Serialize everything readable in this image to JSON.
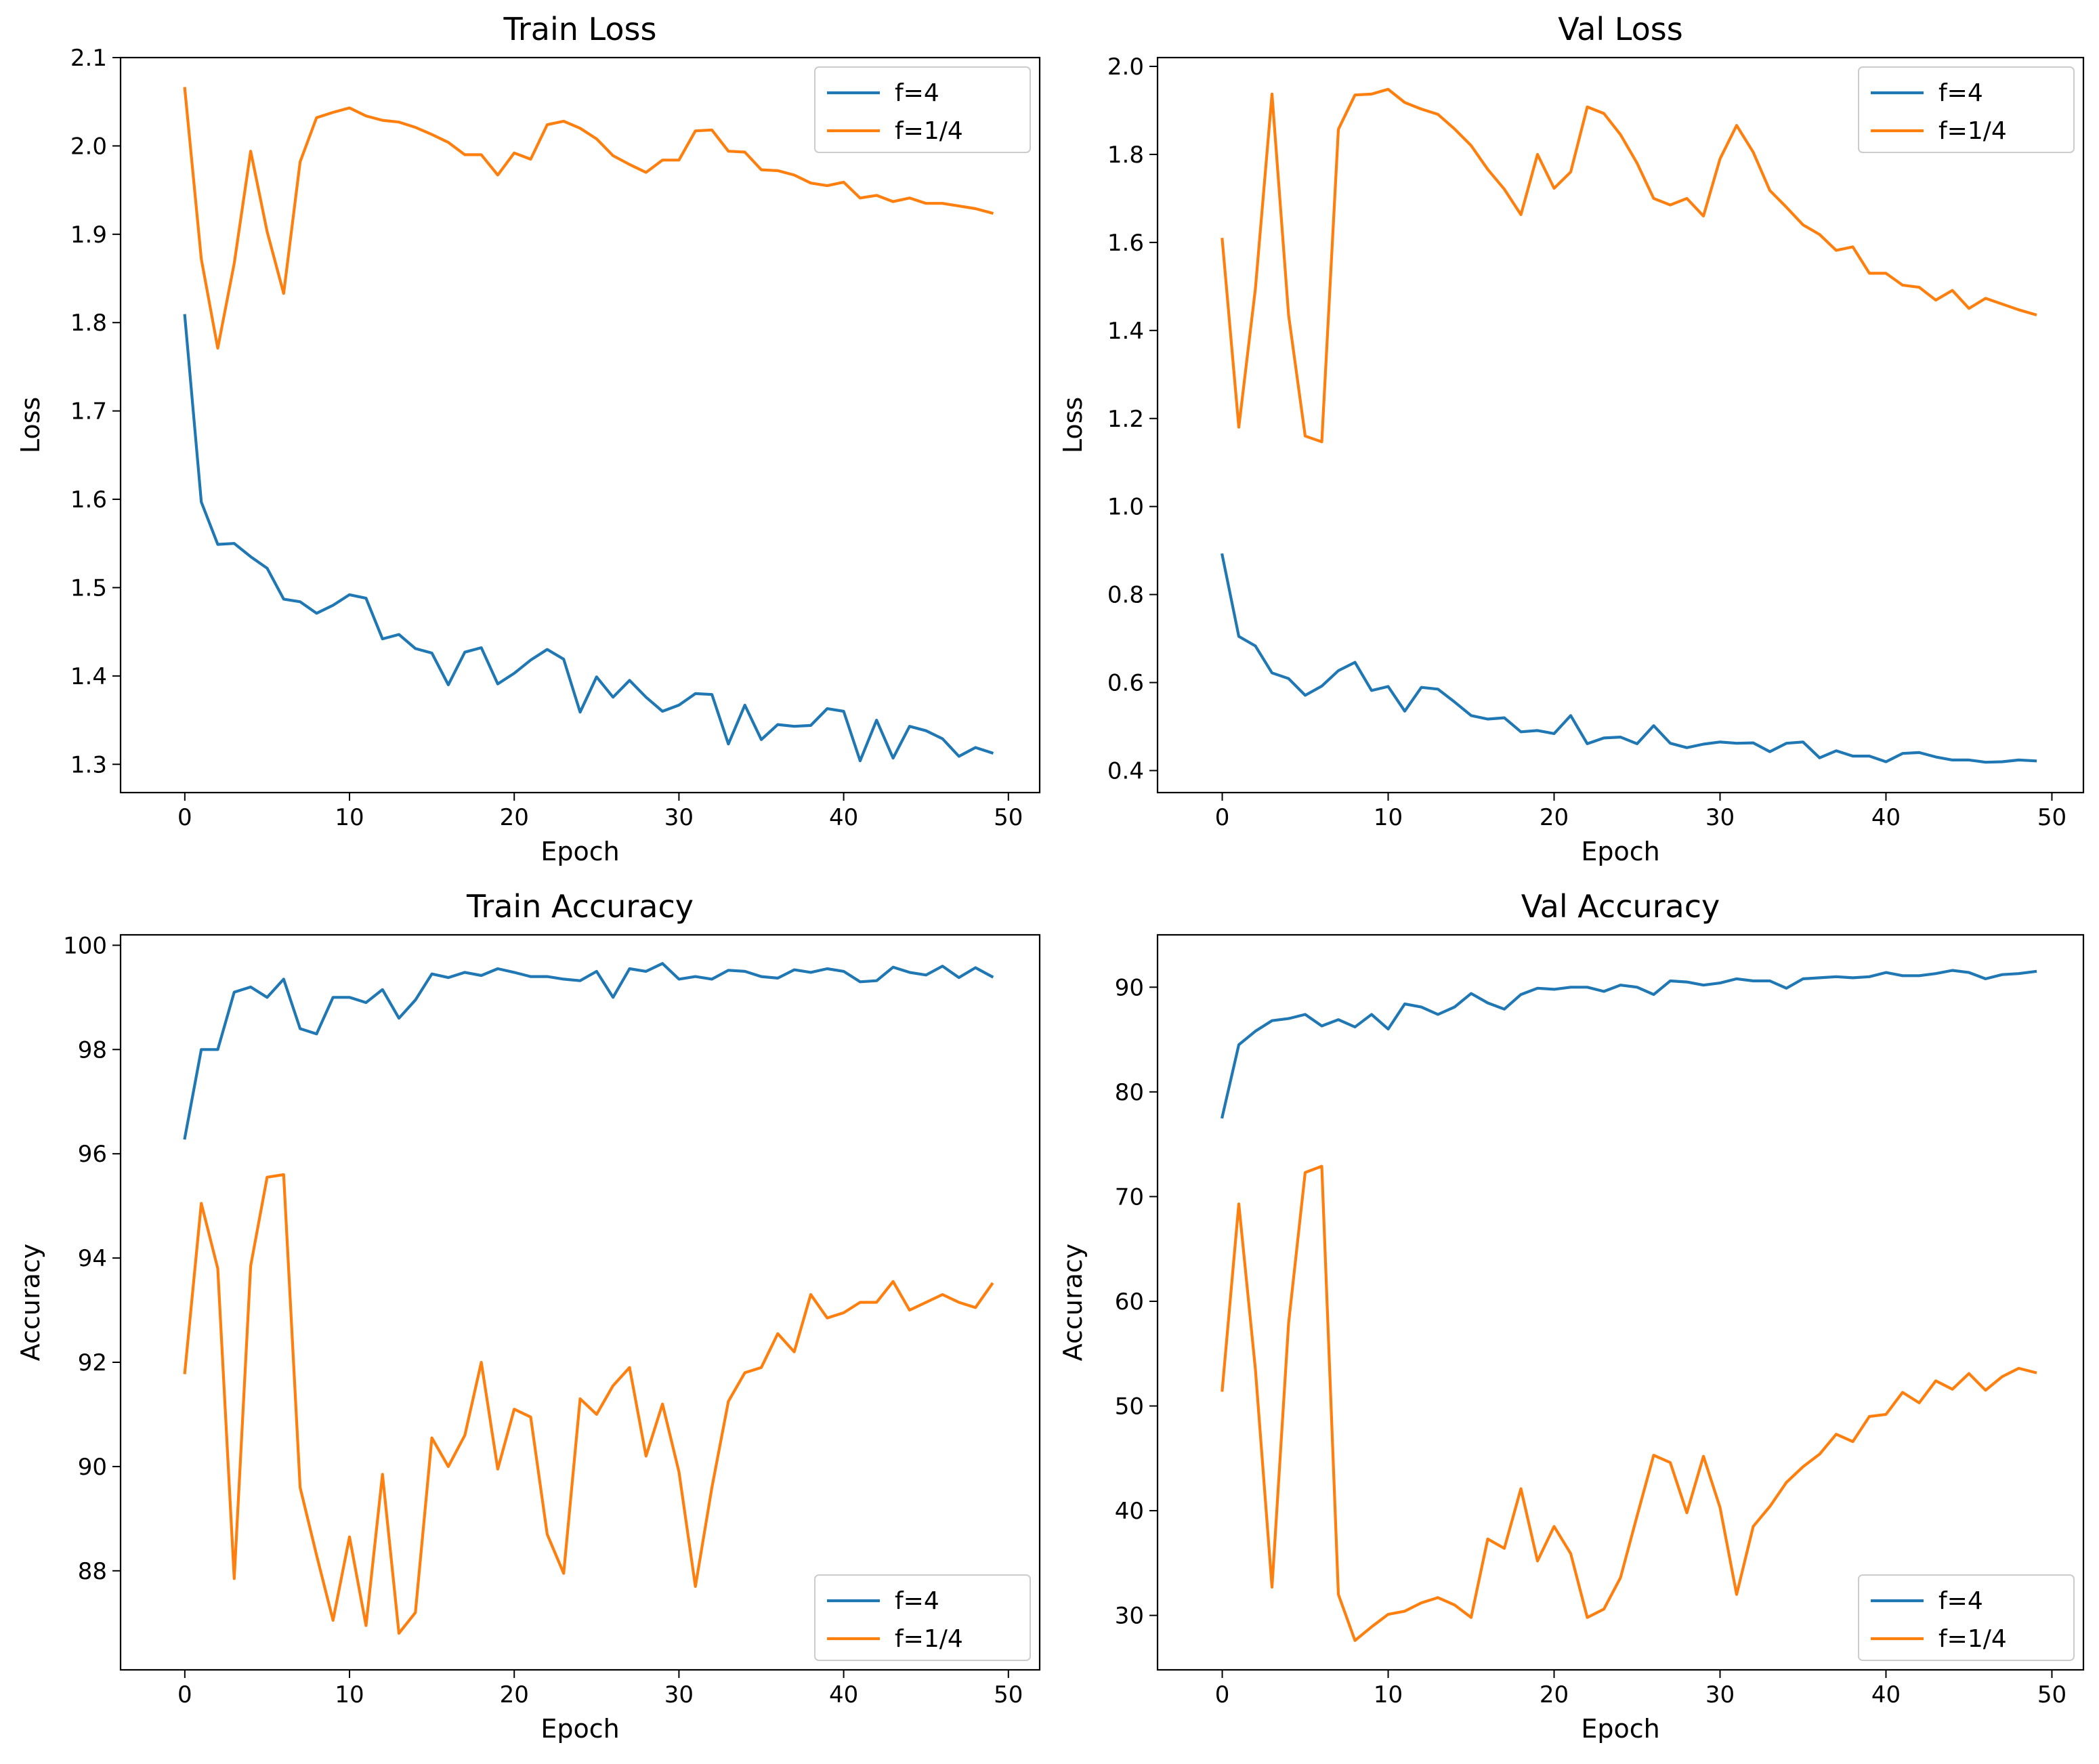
{
  "colors": {
    "f4": "#1f77b4",
    "f14": "#ff7f0e"
  },
  "chart_data": [
    {
      "type": "line",
      "title": "Train Loss",
      "xlabel": "Epoch",
      "ylabel": "Loss",
      "xlim": [
        -3.9,
        51.9
      ],
      "ylim": [
        1.268,
        2.1
      ],
      "xticks": [
        0,
        10,
        20,
        30,
        40,
        50
      ],
      "yticks": [
        1.3,
        1.4,
        1.5,
        1.6,
        1.7,
        1.8,
        1.9,
        2.0,
        2.1
      ],
      "xtick_labels": [
        "0",
        "10",
        "20",
        "30",
        "40",
        "50"
      ],
      "ytick_labels": [
        "1.3",
        "1.4",
        "1.5",
        "1.6",
        "1.7",
        "1.8",
        "1.9",
        "2.0",
        "2.1"
      ],
      "legend_position": "upper right",
      "series": [
        {
          "name": "f=4",
          "color": "#1f77b4",
          "values": [
            1.808,
            1.597,
            1.549,
            1.55,
            1.535,
            1.522,
            1.487,
            1.484,
            1.471,
            1.48,
            1.492,
            1.488,
            1.442,
            1.447,
            1.431,
            1.426,
            1.39,
            1.427,
            1.432,
            1.391,
            1.403,
            1.418,
            1.43,
            1.419,
            1.359,
            1.399,
            1.376,
            1.395,
            1.376,
            1.36,
            1.367,
            1.38,
            1.379,
            1.323,
            1.367,
            1.328,
            1.345,
            1.343,
            1.344,
            1.363,
            1.36,
            1.304,
            1.35,
            1.307,
            1.343,
            1.338,
            1.329,
            1.309,
            1.319,
            1.313
          ]
        },
        {
          "name": "f=1/4",
          "color": "#ff7f0e",
          "values": [
            2.065,
            1.872,
            1.771,
            1.867,
            1.994,
            1.903,
            1.833,
            1.982,
            2.032,
            2.038,
            2.043,
            2.034,
            2.029,
            2.027,
            2.021,
            2.013,
            2.004,
            1.99,
            1.99,
            1.967,
            1.992,
            1.985,
            2.024,
            2.028,
            2.02,
            2.008,
            1.989,
            1.979,
            1.97,
            1.984,
            1.984,
            2.017,
            2.018,
            1.994,
            1.993,
            1.973,
            1.972,
            1.967,
            1.958,
            1.955,
            1.959,
            1.941,
            1.944,
            1.937,
            1.941,
            1.935,
            1.935,
            1.932,
            1.929,
            1.924
          ]
        }
      ]
    },
    {
      "type": "line",
      "title": "Val Loss",
      "xlabel": "Epoch",
      "ylabel": "Loss",
      "xlim": [
        -3.9,
        51.9
      ],
      "ylim": [
        0.35,
        2.02
      ],
      "xticks": [
        0,
        10,
        20,
        30,
        40,
        50
      ],
      "yticks": [
        0.4,
        0.6,
        0.8,
        1.0,
        1.2,
        1.4,
        1.6,
        1.8,
        2.0
      ],
      "xtick_labels": [
        "0",
        "10",
        "20",
        "30",
        "40",
        "50"
      ],
      "ytick_labels": [
        "0.4",
        "0.6",
        "0.8",
        "1.0",
        "1.2",
        "1.4",
        "1.6",
        "1.8",
        "2.0"
      ],
      "legend_position": "upper right",
      "series": [
        {
          "name": "f=4",
          "color": "#1f77b4",
          "values": [
            0.89,
            0.705,
            0.683,
            0.622,
            0.609,
            0.571,
            0.592,
            0.627,
            0.646,
            0.582,
            0.591,
            0.535,
            0.589,
            0.585,
            0.556,
            0.525,
            0.517,
            0.52,
            0.488,
            0.491,
            0.484,
            0.525,
            0.461,
            0.474,
            0.476,
            0.461,
            0.502,
            0.462,
            0.452,
            0.46,
            0.465,
            0.462,
            0.463,
            0.443,
            0.462,
            0.465,
            0.429,
            0.445,
            0.433,
            0.433,
            0.42,
            0.439,
            0.441,
            0.431,
            0.424,
            0.424,
            0.419,
            0.42,
            0.424,
            0.422
          ]
        },
        {
          "name": "f=1/4",
          "color": "#ff7f0e",
          "values": [
            1.607,
            1.18,
            1.495,
            1.937,
            1.435,
            1.16,
            1.147,
            1.857,
            1.935,
            1.937,
            1.948,
            1.918,
            1.903,
            1.891,
            1.858,
            1.82,
            1.766,
            1.721,
            1.663,
            1.8,
            1.723,
            1.76,
            1.908,
            1.893,
            1.845,
            1.78,
            1.7,
            1.685,
            1.7,
            1.66,
            1.79,
            1.866,
            1.805,
            1.718,
            1.68,
            1.64,
            1.618,
            1.582,
            1.59,
            1.53,
            1.53,
            1.503,
            1.498,
            1.469,
            1.491,
            1.45,
            1.473,
            1.46,
            1.447,
            1.436
          ]
        }
      ]
    },
    {
      "type": "line",
      "title": "Train Accuracy",
      "xlabel": "Epoch",
      "ylabel": "Accuracy",
      "xlim": [
        -3.9,
        51.9
      ],
      "ylim": [
        86.1,
        100.2
      ],
      "xticks": [
        0,
        10,
        20,
        30,
        40,
        50
      ],
      "yticks": [
        88,
        90,
        92,
        94,
        96,
        98,
        100
      ],
      "xtick_labels": [
        "0",
        "10",
        "20",
        "30",
        "40",
        "50"
      ],
      "ytick_labels": [
        "88",
        "90",
        "92",
        "94",
        "96",
        "98",
        "100"
      ],
      "legend_position": "lower right",
      "series": [
        {
          "name": "f=4",
          "color": "#1f77b4",
          "values": [
            96.3,
            98.0,
            98.0,
            99.1,
            99.2,
            99.0,
            99.35,
            98.4,
            98.3,
            99.0,
            99.0,
            98.9,
            99.15,
            98.6,
            98.95,
            99.45,
            99.38,
            99.48,
            99.42,
            99.55,
            99.48,
            99.4,
            99.4,
            99.35,
            99.32,
            99.5,
            99.0,
            99.55,
            99.5,
            99.65,
            99.35,
            99.4,
            99.35,
            99.52,
            99.5,
            99.4,
            99.37,
            99.53,
            99.48,
            99.55,
            99.5,
            99.3,
            99.32,
            99.58,
            99.48,
            99.43,
            99.6,
            99.38,
            99.57,
            99.4
          ]
        },
        {
          "name": "f=1/4",
          "color": "#ff7f0e",
          "values": [
            91.8,
            95.05,
            93.8,
            87.85,
            93.85,
            95.55,
            95.6,
            89.6,
            88.3,
            87.05,
            88.65,
            86.95,
            89.85,
            86.8,
            87.2,
            90.55,
            90.0,
            90.6,
            92.0,
            89.95,
            91.1,
            90.95,
            88.7,
            87.95,
            91.3,
            91.0,
            91.55,
            91.9,
            90.2,
            91.2,
            89.9,
            87.7,
            89.6,
            91.25,
            91.8,
            91.9,
            92.55,
            92.2,
            93.3,
            92.85,
            92.95,
            93.15,
            93.15,
            93.55,
            93.0,
            93.15,
            93.3,
            93.15,
            93.05,
            93.5
          ]
        }
      ]
    },
    {
      "type": "line",
      "title": "Val Accuracy",
      "xlabel": "Epoch",
      "ylabel": "Accuracy",
      "xlim": [
        -3.9,
        51.9
      ],
      "ylim": [
        24.8,
        95.0
      ],
      "xticks": [
        0,
        10,
        20,
        30,
        40,
        50
      ],
      "yticks": [
        30,
        40,
        50,
        60,
        70,
        80,
        90
      ],
      "xtick_labels": [
        "0",
        "10",
        "20",
        "30",
        "40",
        "50"
      ],
      "ytick_labels": [
        "30",
        "40",
        "50",
        "60",
        "70",
        "80",
        "90"
      ],
      "legend_position": "lower right",
      "series": [
        {
          "name": "f=4",
          "color": "#1f77b4",
          "values": [
            77.6,
            84.5,
            85.8,
            86.8,
            87.0,
            87.4,
            86.3,
            86.9,
            86.2,
            87.4,
            86.0,
            88.4,
            88.1,
            87.4,
            88.1,
            89.4,
            88.5,
            87.9,
            89.3,
            89.9,
            89.8,
            90.0,
            90.0,
            89.6,
            90.2,
            90.0,
            89.3,
            90.6,
            90.5,
            90.2,
            90.4,
            90.8,
            90.6,
            90.6,
            89.9,
            90.8,
            90.9,
            91.0,
            90.9,
            91.0,
            91.4,
            91.1,
            91.1,
            91.3,
            91.6,
            91.4,
            90.8,
            91.2,
            91.3,
            91.5
          ]
        },
        {
          "name": "f=1/4",
          "color": "#ff7f0e",
          "values": [
            51.5,
            69.3,
            53.5,
            32.7,
            57.9,
            72.3,
            72.9,
            32.0,
            27.6,
            28.9,
            30.1,
            30.4,
            31.2,
            31.7,
            31.0,
            29.8,
            37.3,
            36.4,
            42.1,
            35.2,
            38.5,
            35.9,
            29.8,
            30.6,
            33.6,
            39.5,
            45.3,
            44.6,
            39.8,
            45.2,
            40.3,
            32.0,
            38.5,
            40.4,
            42.7,
            44.2,
            45.4,
            47.3,
            46.6,
            49.0,
            49.2,
            51.3,
            50.3,
            52.4,
            51.6,
            53.1,
            51.5,
            52.8,
            53.6,
            53.2
          ]
        }
      ]
    }
  ]
}
